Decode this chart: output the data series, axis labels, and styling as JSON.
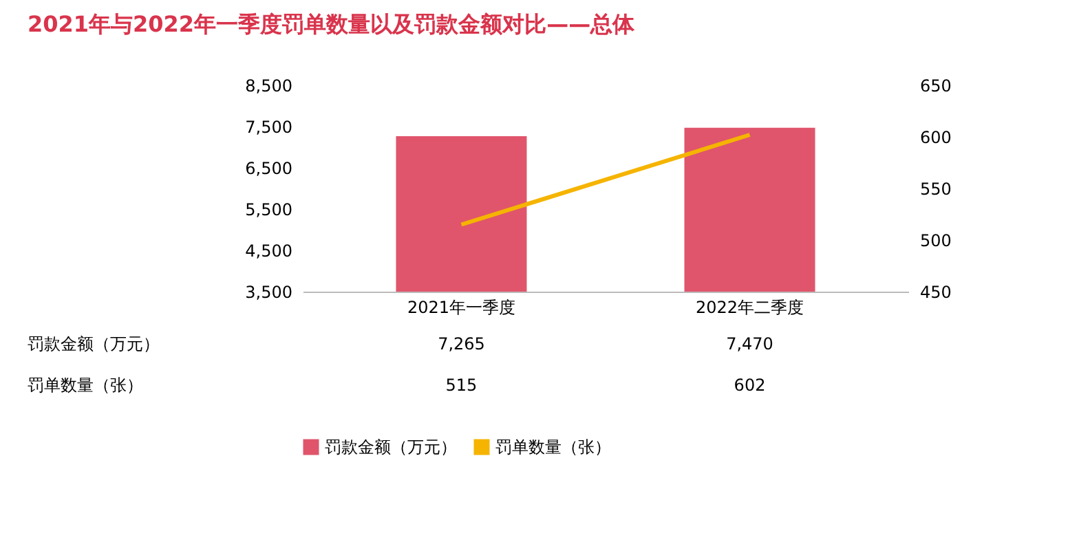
{
  "chart_data": {
    "type": "bar",
    "title": "2021年与2022年一季度罚单数量以及罚款金额对比——总体",
    "categories": [
      "2021年一季度",
      "2022年二季度"
    ],
    "series": [
      {
        "name": "罚款金额（万元）",
        "color": "#e0556b",
        "values": [
          7265,
          7470
        ],
        "value_labels": [
          "7,265",
          "7,470"
        ]
      },
      {
        "name": "罚单数量（张）",
        "type": "line",
        "axis": "y2",
        "color": "#f5b400",
        "values": [
          515,
          602
        ]
      }
    ],
    "ylim": [
      3500,
      8500
    ],
    "yticks": [
      {
        "value": 3500,
        "label": "3,500"
      },
      {
        "value": 4500,
        "label": "4,500"
      },
      {
        "value": 5500,
        "label": "5,500"
      },
      {
        "value": 6500,
        "label": "6,500"
      },
      {
        "value": 7500,
        "label": "7,500"
      },
      {
        "value": 8500,
        "label": "8,500"
      }
    ],
    "y2lim": [
      450,
      650
    ],
    "y2ticks": [
      450,
      500,
      550,
      600,
      650
    ],
    "data_labels": true,
    "grid": false,
    "legend": "bottom"
  }
}
